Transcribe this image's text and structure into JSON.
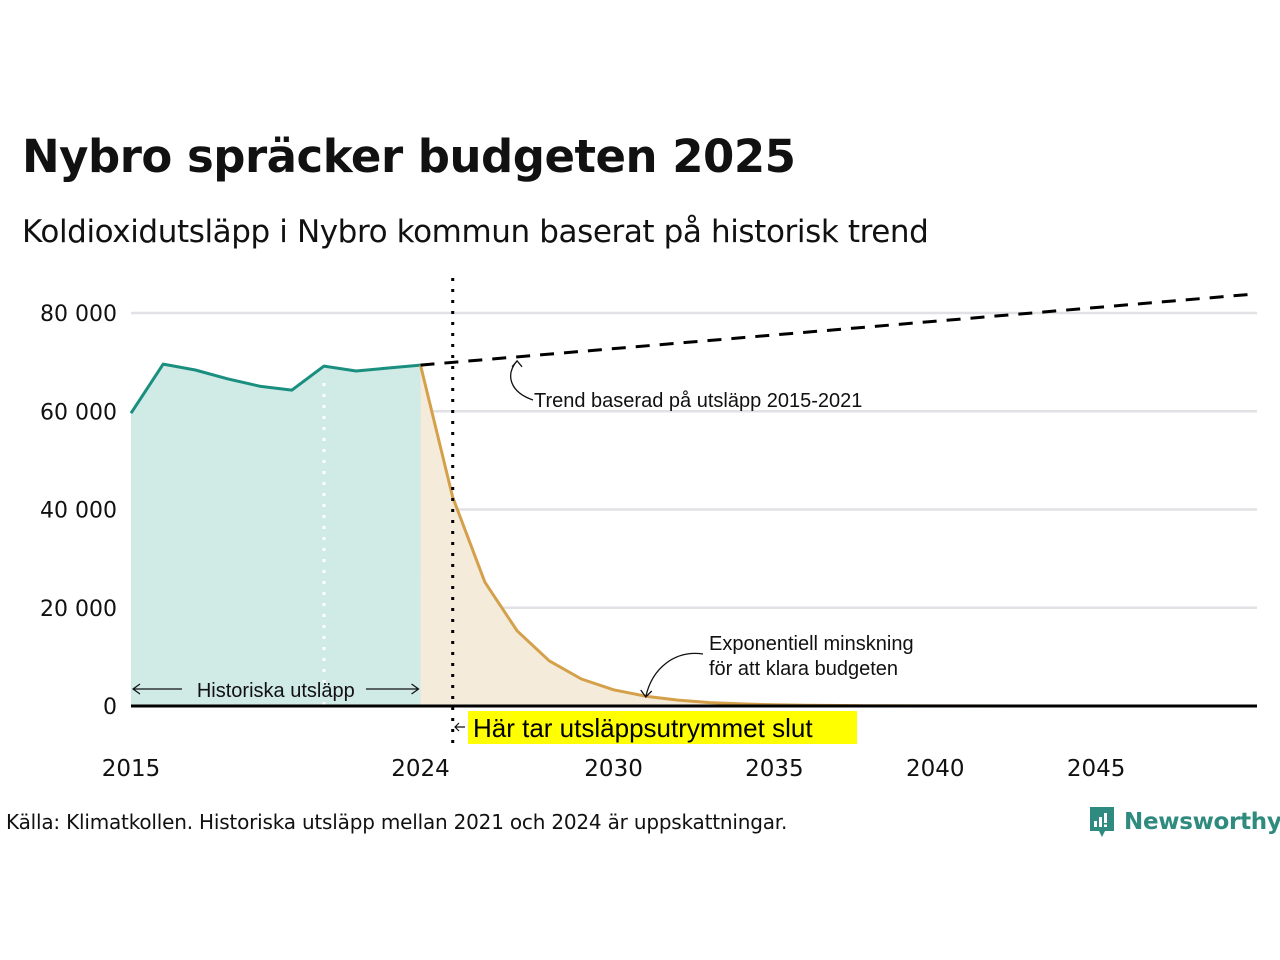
{
  "header": {
    "title": "Nybro spräcker budgeten 2025",
    "subtitle": "Koldioxidutsläpp i Nybro kommun baserat på historisk trend"
  },
  "footer": {
    "source": "Källa: Klimatkollen. Historiska utsläpp mellan 2021 och 2024 är uppskattningar.",
    "brand": "Newsworthy",
    "brand_icon": "newsworthy-logo-icon"
  },
  "colors": {
    "historical_line": "#1a8f80",
    "historical_fill": "#d0eae6",
    "budget_line": "#d4a04a",
    "budget_fill": "#f5ebda",
    "trend_line": "#000000",
    "grid": "#e2e2e6",
    "highlight": "#ffff00",
    "brand": "#2f8a7f"
  },
  "chart_data": {
    "type": "area",
    "title": "Nybro spräcker budgeten 2025",
    "subtitle": "Koldioxidutsläpp i Nybro kommun baserat på historisk trend",
    "xlabel": "",
    "ylabel": "",
    "xlim": [
      2015,
      2050
    ],
    "ylim": [
      0,
      85000
    ],
    "grid": true,
    "x_ticks": [
      2015,
      2024,
      2030,
      2035,
      2040,
      2045
    ],
    "x_tick_labels": [
      "2015",
      "2024",
      "2030",
      "2035",
      "2040",
      "2045"
    ],
    "y_ticks": [
      0,
      20000,
      40000,
      60000,
      80000
    ],
    "y_tick_labels": [
      "0",
      "20 000",
      "40 000",
      "60 000",
      "80 000"
    ],
    "series": [
      {
        "name": "Historiska utsläpp",
        "style": "solid-area",
        "x": [
          2015,
          2016,
          2017,
          2018,
          2019,
          2020,
          2021,
          2022,
          2023,
          2024
        ],
        "values": [
          59600,
          69600,
          68400,
          66600,
          65100,
          64300,
          69200,
          68200,
          68800,
          69400
        ]
      },
      {
        "name": "Exponentiell minskning för att klara budgeten",
        "style": "solid-area",
        "x": [
          2024,
          2025,
          2026,
          2027,
          2028,
          2029,
          2030,
          2031,
          2032,
          2033,
          2034,
          2035,
          2036,
          2038,
          2040,
          2045,
          2050
        ],
        "values": [
          69400,
          42500,
          25200,
          15300,
          9200,
          5500,
          3300,
          2000,
          1200,
          700,
          420,
          250,
          150,
          60,
          20,
          0,
          0
        ]
      },
      {
        "name": "Trend baserad på utsläpp 2015-2021",
        "style": "dashed",
        "x": [
          2024,
          2050
        ],
        "values": [
          69400,
          83900
        ]
      }
    ],
    "reference_lines": [
      {
        "x": 2025,
        "style": "dotted",
        "label": "Här tar utsläppsutrymmet slut"
      },
      {
        "x": 2021,
        "style": "dotted-white",
        "label": ""
      }
    ],
    "annotations": [
      {
        "text": "Trend baserad på utsläpp 2015-2021",
        "target_x": 2027,
        "target_series": "trend"
      },
      {
        "text_lines": [
          "Exponentiell minskning",
          "för att klara budgeten"
        ],
        "target_x": 2031
      },
      {
        "text": "Historiska utsläpp",
        "span": [
          2015,
          2024
        ]
      },
      {
        "text": "Här tar utsläppsutrymmet slut",
        "highlight": true,
        "at_x": 2025
      }
    ]
  }
}
